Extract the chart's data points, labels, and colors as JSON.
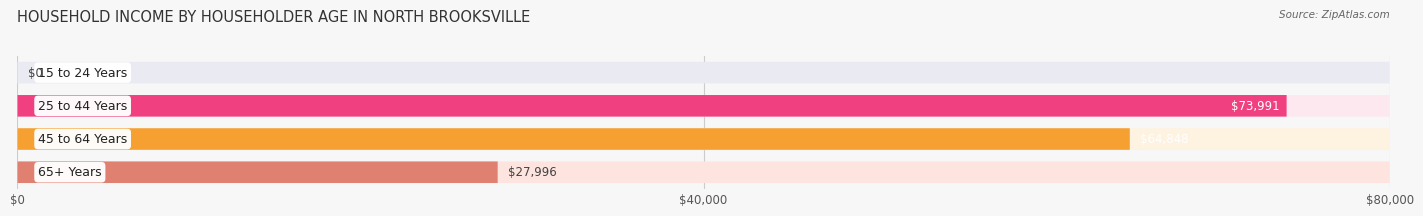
{
  "title": "HOUSEHOLD INCOME BY HOUSEHOLDER AGE IN NORTH BROOKSVILLE",
  "source": "Source: ZipAtlas.com",
  "categories": [
    "15 to 24 Years",
    "25 to 44 Years",
    "45 to 64 Years",
    "65+ Years"
  ],
  "values": [
    0,
    73991,
    64848,
    27996
  ],
  "bar_colors": [
    "#a0a0cc",
    "#f04080",
    "#f5a030",
    "#e08070"
  ],
  "bg_colors": [
    "#eaeaf2",
    "#fde8f0",
    "#fef2e0",
    "#fde4de"
  ],
  "value_labels": [
    "$0",
    "$73,991",
    "$64,848",
    "$27,996"
  ],
  "value_label_color_white": [
    false,
    true,
    true,
    false
  ],
  "xlim": [
    0,
    80000
  ],
  "xticklabels": [
    "$0",
    "$40,000",
    "$80,000"
  ],
  "xtick_values": [
    0,
    40000,
    80000
  ],
  "background_color": "#f7f7f7",
  "title_fontsize": 10.5,
  "bar_height": 0.65,
  "label_fontsize": 9,
  "value_fontsize": 8.5
}
